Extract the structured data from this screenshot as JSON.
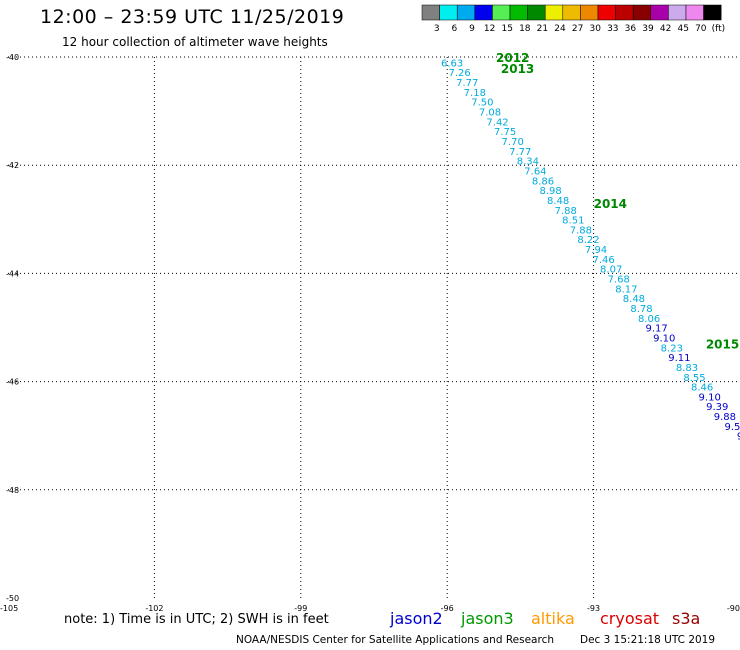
{
  "header": {
    "title": "12:00 – 23:59 UTC 11/25/2019",
    "subtitle": "12 hour collection of altimeter wave heights"
  },
  "colorbar": {
    "ticks": [
      "3",
      "6",
      "9",
      "12",
      "15",
      "18",
      "21",
      "24",
      "27",
      "30",
      "33",
      "36",
      "39",
      "42",
      "45",
      "70",
      "(ft)"
    ],
    "colors": [
      "#808080",
      "#00eeee",
      "#00aaee",
      "#0000ee",
      "#55ee55",
      "#00bb00",
      "#008800",
      "#eeee00",
      "#eebb00",
      "#ee8800",
      "#ee0000",
      "#bb0000",
      "#880000",
      "#aa00aa",
      "#ccaaee",
      "#ee88ee",
      "#000000"
    ]
  },
  "footer": {
    "note": "note:  1) Time is in UTC;  2) SWH is in feet",
    "credit": "NOAA/NESDIS Center for Satellite Applications and Research",
    "timestamp": "Dec  3 15:21:18 UTC 2019",
    "satellites": [
      {
        "label": "jason2",
        "color": "#0000cc"
      },
      {
        "label": "jason3",
        "color": "#009900"
      },
      {
        "label": "altika",
        "color": "#ff9900"
      },
      {
        "label": "cryosat",
        "color": "#dd0000"
      },
      {
        "label": "s3a",
        "color": "#990000"
      }
    ]
  },
  "chart_data": {
    "type": "scatter",
    "title": "12:00 – 23:59 UTC 11/25/2019",
    "subtitle": "12 hour collection of altimeter wave heights",
    "xlabel": "",
    "ylabel": "",
    "xlim": [
      -105,
      -90
    ],
    "ylim": [
      -50,
      -40
    ],
    "x_ticks": [
      "-105",
      "-102",
      "-99",
      "-96",
      "-93",
      "-90"
    ],
    "y_ticks": [
      "-40",
      "-42",
      "-44",
      "-46",
      "-48",
      "-50"
    ],
    "grid": true,
    "track": {
      "start": [
        -95.9,
        -40.1
      ],
      "end": [
        -90.0,
        -47.0
      ]
    },
    "time_labels": [
      {
        "text": "2012",
        "lon": -95.0,
        "lat": -40.0
      },
      {
        "text": "2013",
        "lon": -94.9,
        "lat": -40.2
      },
      {
        "text": "2014",
        "lon": -93.0,
        "lat": -42.7
      },
      {
        "text": "2015",
        "lon": -90.7,
        "lat": -45.3
      }
    ],
    "swh_points": [
      {
        "text": "6.63",
        "color": "#00aadd"
      },
      {
        "text": "7.26",
        "color": "#00aadd"
      },
      {
        "text": "7.77",
        "color": "#00aadd"
      },
      {
        "text": "7.18",
        "color": "#00aadd"
      },
      {
        "text": "7.50",
        "color": "#00aadd"
      },
      {
        "text": "7.08",
        "color": "#00aadd"
      },
      {
        "text": "7.42",
        "color": "#00aadd"
      },
      {
        "text": "7.75",
        "color": "#00aadd"
      },
      {
        "text": "7.70",
        "color": "#00aadd"
      },
      {
        "text": "7.77",
        "color": "#00aadd"
      },
      {
        "text": "8.34",
        "color": "#00aadd"
      },
      {
        "text": "7.64",
        "color": "#00aadd"
      },
      {
        "text": "8.86",
        "color": "#00aadd"
      },
      {
        "text": "8.98",
        "color": "#00aadd"
      },
      {
        "text": "8.48",
        "color": "#00aadd"
      },
      {
        "text": "7.88",
        "color": "#00aadd"
      },
      {
        "text": "8.51",
        "color": "#00aadd"
      },
      {
        "text": "7.88",
        "color": "#00aadd"
      },
      {
        "text": "8.22",
        "color": "#00aadd"
      },
      {
        "text": "7.94",
        "color": "#00aadd"
      },
      {
        "text": "7.46",
        "color": "#00aadd"
      },
      {
        "text": "8.07",
        "color": "#00aadd"
      },
      {
        "text": "7.68",
        "color": "#00aadd"
      },
      {
        "text": "8.17",
        "color": "#00aadd"
      },
      {
        "text": "8.48",
        "color": "#00aadd"
      },
      {
        "text": "8.78",
        "color": "#00aadd"
      },
      {
        "text": "8.06",
        "color": "#00aadd"
      },
      {
        "text": "9.17",
        "color": "#0000cc"
      },
      {
        "text": "9.10",
        "color": "#0000cc"
      },
      {
        "text": "8.23",
        "color": "#00aadd"
      },
      {
        "text": "9.11",
        "color": "#0000cc"
      },
      {
        "text": "8.83",
        "color": "#00aadd"
      },
      {
        "text": "8.55",
        "color": "#00aadd"
      },
      {
        "text": "8.46",
        "color": "#00aadd"
      },
      {
        "text": "9.10",
        "color": "#0000cc"
      },
      {
        "text": "9.39",
        "color": "#0000cc"
      },
      {
        "text": "9.88",
        "color": "#0000cc"
      },
      {
        "text": "9.5",
        "color": "#0000cc"
      },
      {
        "text": "9",
        "color": "#0000cc"
      }
    ]
  }
}
